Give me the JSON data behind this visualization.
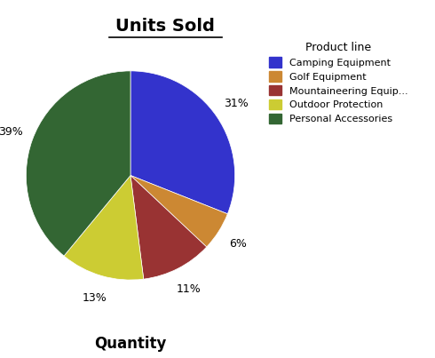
{
  "title": "Units Sold",
  "xlabel": "Quantity",
  "legend_title": "Product line",
  "labels": [
    "Camping Equipment",
    "Golf Equipment",
    "Mountaineering Equip...",
    "Outdoor Protection",
    "Personal Accessories"
  ],
  "sizes": [
    31,
    6,
    11,
    13,
    39
  ],
  "colors": [
    "#3333cc",
    "#cc8833",
    "#993333",
    "#cccc33",
    "#336633"
  ],
  "startangle": 90,
  "background_color": "#ffffff",
  "title_fontsize": 14,
  "xlabel_fontsize": 12,
  "pct_fontsize": 9,
  "legend_fontsize": 8,
  "legend_title_fontsize": 9
}
